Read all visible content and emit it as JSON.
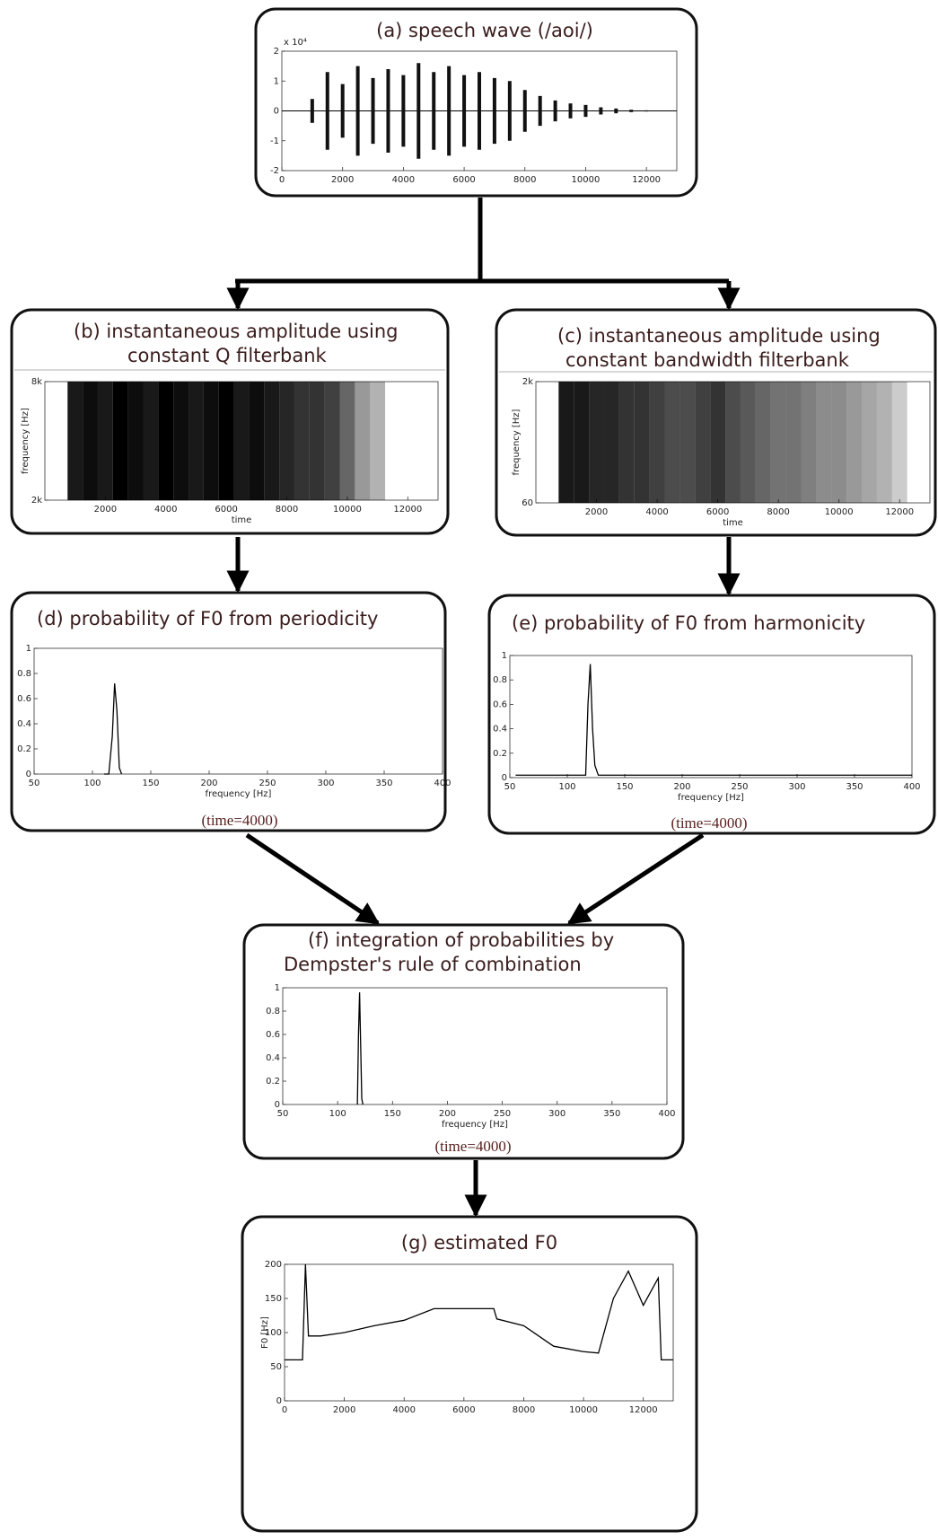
{
  "nodes": [
    {
      "title_lines": [
        "(a) speech wave (/aoi/)"
      ],
      "chart": {
        "type": "wave",
        "y_scale_label": "x 10⁴",
        "xlim": [
          0,
          13000
        ],
        "ylim": [
          -2,
          2
        ],
        "xticks": [
          0,
          2000,
          4000,
          6000,
          8000,
          10000,
          12000
        ],
        "yticks": [
          -2,
          -1,
          0,
          1,
          2
        ],
        "x": [
          1000,
          1500,
          2000,
          2500,
          3000,
          3500,
          4000,
          4500,
          5000,
          5500,
          6000,
          6500,
          7000,
          7500,
          8000,
          8500,
          9000,
          9500,
          10000,
          10500,
          11000,
          11500,
          12000
        ],
        "values": [
          0.4,
          1.3,
          0.9,
          1.5,
          1.1,
          1.4,
          1.2,
          1.6,
          1.3,
          1.5,
          1.2,
          1.3,
          1.1,
          1.0,
          0.7,
          0.5,
          0.35,
          0.25,
          0.2,
          0.12,
          0.08,
          0.04,
          0.02
        ]
      }
    },
    {
      "title_lines": [
        "(b) instantaneous amplitude using",
        "constant Q filterbank"
      ],
      "chart": {
        "type": "density",
        "x_label": "time",
        "y_label": "frequency [Hz]",
        "xlim": [
          0,
          13000
        ],
        "ylim": [
          2000,
          8000
        ],
        "xticks": [
          2000,
          4000,
          6000,
          8000,
          10000,
          12000
        ],
        "yticks": [
          {
            "value": 2000,
            "label": "2k"
          },
          {
            "value": 8000,
            "label": "8k"
          }
        ],
        "x": [
          1000,
          1500,
          2000,
          2500,
          3000,
          3500,
          4000,
          4500,
          5000,
          5500,
          6000,
          6500,
          7000,
          7500,
          8000,
          8500,
          9000,
          9500,
          10000,
          10500,
          11000
        ],
        "values": [
          0.9,
          0.95,
          0.9,
          1,
          0.95,
          0.9,
          1,
          0.95,
          0.9,
          0.95,
          1,
          0.9,
          0.95,
          0.9,
          0.85,
          0.8,
          0.8,
          0.75,
          0.6,
          0.4,
          0.3
        ]
      }
    },
    {
      "title_lines": [
        "(c) instantaneous amplitude using",
        "constant bandwidth filterbank"
      ],
      "chart": {
        "type": "density",
        "x_label": "time",
        "y_label": "frequency [Hz]",
        "xlim": [
          0,
          13000
        ],
        "ylim": [
          60,
          2000
        ],
        "xticks": [
          2000,
          4000,
          6000,
          8000,
          10000,
          12000
        ],
        "yticks": [
          60,
          {
            "value": 2000,
            "label": "2k"
          }
        ],
        "x": [
          1000,
          1500,
          2000,
          2500,
          3000,
          3500,
          4000,
          4500,
          5000,
          5500,
          6000,
          6500,
          7000,
          7500,
          8000,
          8500,
          9000,
          9500,
          10000,
          10500,
          11000,
          11500,
          12000
        ],
        "values": [
          0.9,
          0.9,
          0.85,
          0.85,
          0.8,
          0.8,
          0.75,
          0.7,
          0.7,
          0.75,
          0.8,
          0.7,
          0.65,
          0.6,
          0.55,
          0.55,
          0.5,
          0.45,
          0.45,
          0.4,
          0.35,
          0.3,
          0.2
        ]
      }
    },
    {
      "title_lines": [
        "(d) probability of F0 from periodicity"
      ],
      "note": "(time=4000)",
      "chart": {
        "type": "line",
        "x_label": "frequency [Hz]",
        "xlim": [
          50,
          400
        ],
        "ylim": [
          0,
          1
        ],
        "xticks": [
          50,
          100,
          150,
          200,
          250,
          300,
          350,
          400
        ],
        "yticks": [
          0,
          0.2,
          0.4,
          0.6,
          0.8,
          1
        ],
        "x": [
          110,
          114,
          117,
          119,
          121,
          123,
          125
        ],
        "values": [
          0,
          0,
          0.3,
          0.72,
          0.5,
          0.05,
          0
        ]
      }
    },
    {
      "title_lines": [
        "(e) probability of F0 from harmonicity"
      ],
      "note": "(time=4000)",
      "chart": {
        "type": "line",
        "x_label": "frequency [Hz]",
        "xlim": [
          50,
          400
        ],
        "ylim": [
          0,
          1
        ],
        "xticks": [
          50,
          100,
          150,
          200,
          250,
          300,
          350,
          400
        ],
        "yticks": [
          0,
          0.2,
          0.4,
          0.6,
          0.8,
          1
        ],
        "x": [
          55,
          116,
          118,
          120,
          122,
          124,
          127,
          400
        ],
        "values": [
          0.02,
          0.02,
          0.6,
          0.93,
          0.4,
          0.1,
          0.02,
          0.02
        ]
      }
    },
    {
      "title_lines": [
        "(f) integration of probabilities by",
        "Dempster's rule of combination"
      ],
      "note": "(time=4000)",
      "chart": {
        "type": "line",
        "x_label": "frequency [Hz]",
        "xlim": [
          50,
          400
        ],
        "ylim": [
          0,
          1
        ],
        "xticks": [
          50,
          100,
          150,
          200,
          250,
          300,
          350,
          400
        ],
        "yticks": [
          0,
          0.2,
          0.4,
          0.6,
          0.8,
          1
        ],
        "x": [
          118,
          119,
          120,
          121,
          122,
          123
        ],
        "values": [
          0,
          0.6,
          0.96,
          0.5,
          0.05,
          0
        ]
      }
    },
    {
      "title_lines": [
        "(g) estimated F0"
      ],
      "chart": {
        "type": "line",
        "y_label": "F0 [Hz]",
        "xlim": [
          0,
          13000
        ],
        "ylim": [
          0,
          200
        ],
        "xticks": [
          0,
          2000,
          4000,
          6000,
          8000,
          10000,
          12000
        ],
        "yticks": [
          0,
          50,
          100,
          150,
          200
        ],
        "x": [
          0,
          600,
          700,
          800,
          1200,
          2000,
          3000,
          4000,
          5000,
          6000,
          7000,
          7100,
          8000,
          9000,
          10000,
          10500,
          11000,
          11500,
          12000,
          12500,
          12600,
          13000
        ],
        "values": [
          60,
          60,
          200,
          95,
          95,
          100,
          110,
          118,
          135,
          135,
          135,
          120,
          110,
          80,
          72,
          70,
          150,
          190,
          140,
          180,
          60,
          60
        ]
      }
    }
  ]
}
